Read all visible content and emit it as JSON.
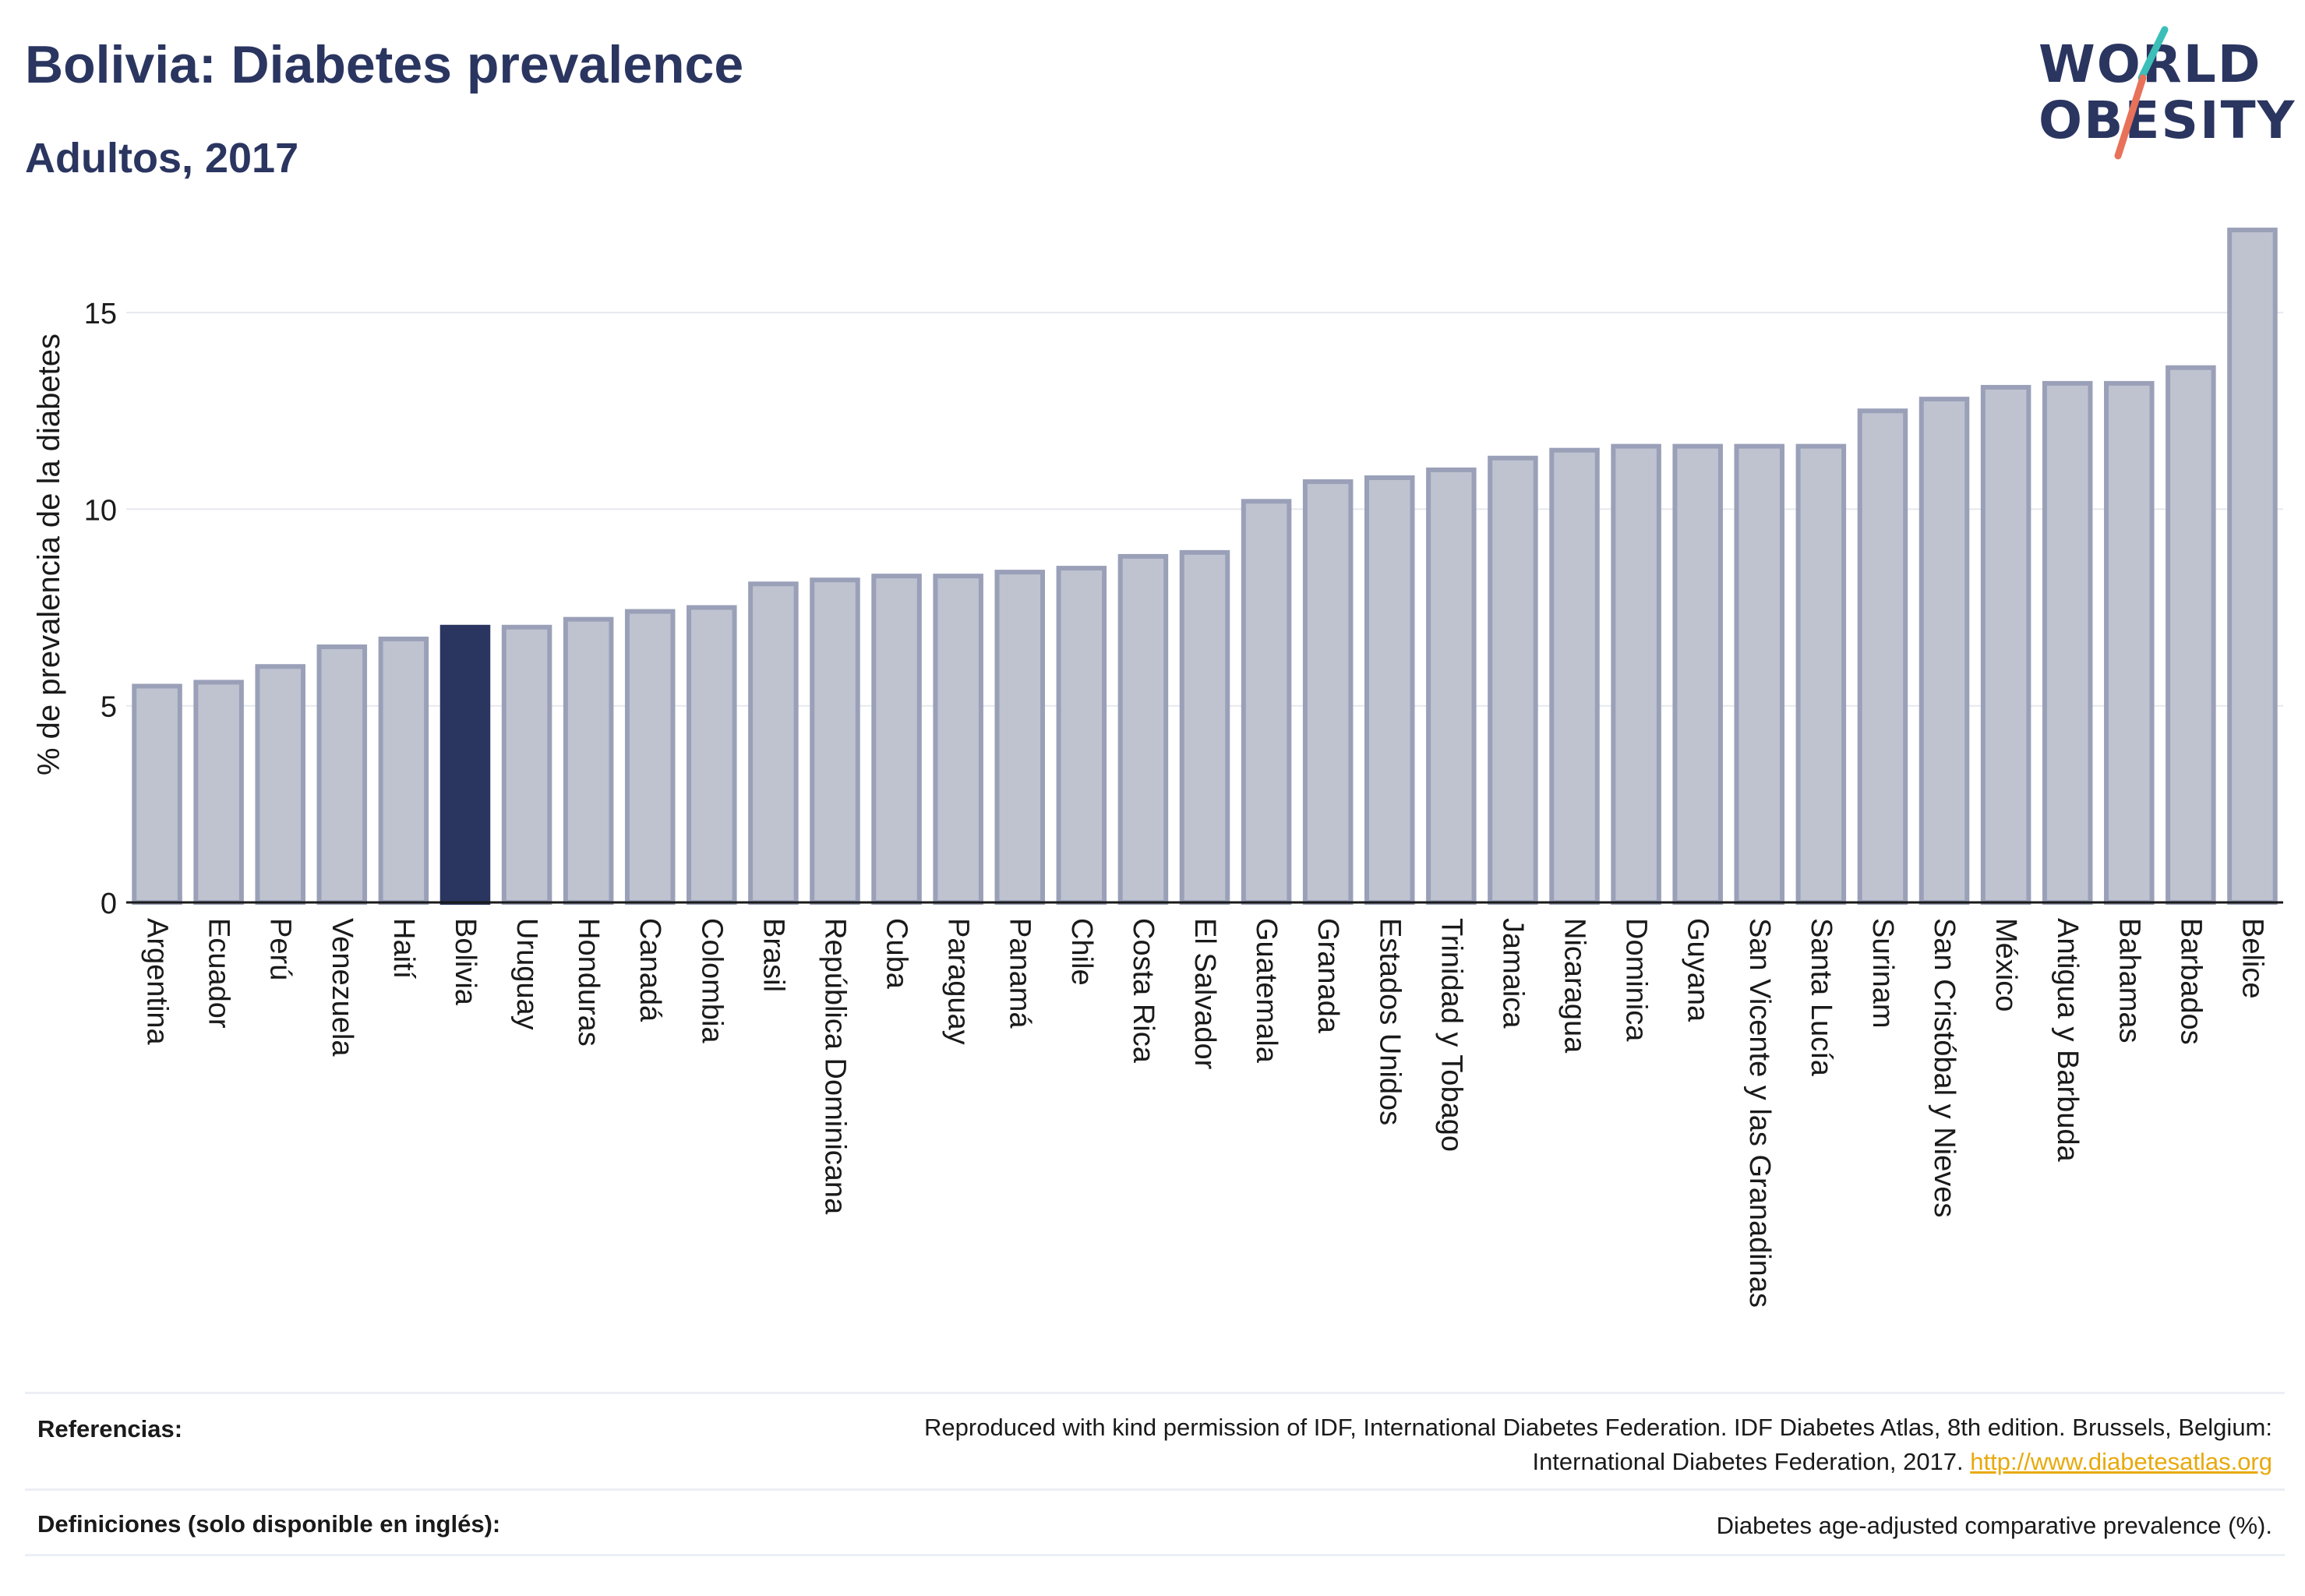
{
  "header": {
    "title": "Bolivia: Diabetes prevalence",
    "subtitle": "Adultos, 2017"
  },
  "logo": {
    "line1": "WORLD",
    "line2": "OBESITY",
    "colors": {
      "text": "#2a3560",
      "slash_top": "#3bbfb8",
      "slash_bottom": "#e8715a"
    }
  },
  "chart_data": {
    "type": "bar",
    "ylabel": "% de prevalencia de la diabetes",
    "xlabel": "",
    "ylim": [
      0,
      17.3
    ],
    "yticks": [
      0,
      5,
      10,
      15
    ],
    "grid": true,
    "highlight": "Bolivia",
    "colors": {
      "bar": "#bfc3d0",
      "bar_border": "#9aa0b8",
      "highlight": "#2a3560"
    },
    "categories": [
      "Argentina",
      "Ecuador",
      "Perú",
      "Venezuela",
      "Haití",
      "Bolivia",
      "Uruguay",
      "Honduras",
      "Canadá",
      "Colombia",
      "Brasil",
      "República Dominicana",
      "Cuba",
      "Paraguay",
      "Panamá",
      "Chile",
      "Costa Rica",
      "El Salvador",
      "Guatemala",
      "Granada",
      "Estados Unidos",
      "Trinidad y Tobago",
      "Jamaica",
      "Nicaragua",
      "Dominica",
      "Guyana",
      "San Vicente y las Granadinas",
      "Santa Lucía",
      "Surinam",
      "San Cristóbal y Nieves",
      "México",
      "Antigua y Barbuda",
      "Bahamas",
      "Barbados",
      "Belice"
    ],
    "values": [
      5.5,
      5.6,
      6.0,
      6.5,
      6.7,
      7.0,
      7.0,
      7.2,
      7.4,
      7.5,
      8.1,
      8.2,
      8.3,
      8.3,
      8.4,
      8.5,
      8.8,
      8.9,
      10.2,
      10.7,
      10.8,
      11.0,
      11.3,
      11.5,
      11.6,
      11.6,
      11.6,
      11.6,
      12.5,
      12.8,
      13.1,
      13.2,
      13.2,
      13.6,
      17.1
    ]
  },
  "footer": {
    "references_label": "Referencias:",
    "references_line1": "Reproduced with kind permission of IDF, International Diabetes Federation. IDF Diabetes Atlas, 8th edition. Brussels, Belgium:",
    "references_line2": "International Diabetes Federation, 2017.",
    "references_link": "http://www.diabetesatlas.org",
    "definitions_label": "Definiciones (solo disponible en inglés):",
    "definitions_text": "Diabetes age-adjusted comparative prevalence (%)."
  }
}
